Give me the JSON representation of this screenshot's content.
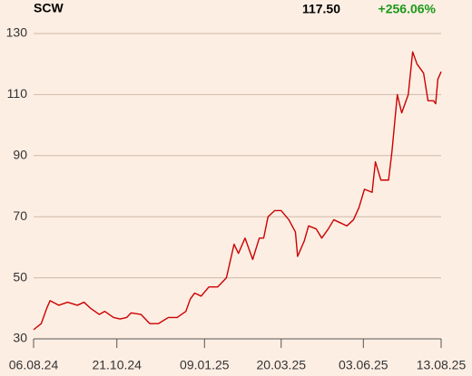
{
  "header": {
    "symbol": "SCW",
    "price": "117.50",
    "change": "+256.06%"
  },
  "chart_data": {
    "type": "line",
    "x": [
      "2024-08-06",
      "2024-08-13",
      "2024-08-18",
      "2024-08-21",
      "2024-08-29",
      "2024-09-06",
      "2024-09-15",
      "2024-09-21",
      "2024-09-27",
      "2024-10-05",
      "2024-10-10",
      "2024-10-18",
      "2024-10-24",
      "2024-10-30",
      "2024-11-03",
      "2024-11-12",
      "2024-11-20",
      "2024-11-28",
      "2024-12-07",
      "2024-12-15",
      "2024-12-23",
      "2024-12-27",
      "2024-12-31",
      "2025-01-06",
      "2025-01-13",
      "2025-01-21",
      "2025-01-29",
      "2025-02-05",
      "2025-02-09",
      "2025-02-15",
      "2025-02-22",
      "2025-02-28",
      "2025-03-04",
      "2025-03-08",
      "2025-03-14",
      "2025-03-20",
      "2025-03-27",
      "2025-04-02",
      "2025-04-04",
      "2025-04-10",
      "2025-04-14",
      "2025-04-21",
      "2025-04-26",
      "2025-05-02",
      "2025-05-07",
      "2025-05-13",
      "2025-05-19",
      "2025-05-25",
      "2025-05-30",
      "2025-06-04",
      "2025-06-11",
      "2025-06-14",
      "2025-06-19",
      "2025-06-26",
      "2025-06-29",
      "2025-07-04",
      "2025-07-08",
      "2025-07-14",
      "2025-07-18",
      "2025-07-22",
      "2025-07-28",
      "2025-08-01",
      "2025-08-06",
      "2025-08-08",
      "2025-08-10",
      "2025-08-13"
    ],
    "series": [
      {
        "name": "SCW",
        "color": "#cc0000",
        "values": [
          33,
          35,
          40,
          42.5,
          41,
          42,
          41,
          42,
          40,
          38,
          39,
          37,
          36.5,
          37,
          38.5,
          38,
          35,
          35,
          37,
          37,
          39,
          43,
          45,
          44,
          47,
          47,
          50,
          61,
          58,
          63,
          56,
          63,
          63,
          70,
          72,
          72,
          69,
          65,
          57,
          62,
          67,
          66,
          63,
          66,
          69,
          68,
          67,
          69,
          73,
          79,
          78,
          88,
          82,
          82,
          91,
          110,
          104,
          110,
          124,
          120,
          117,
          108,
          108,
          107,
          115,
          117.5
        ]
      }
    ],
    "xlim": [
      "2024-08-06",
      "2025-08-13"
    ],
    "xticks": [
      {
        "value": "2024-08-06",
        "label": "06.08.24"
      },
      {
        "value": "2024-10-21",
        "label": "21.10.24"
      },
      {
        "value": "2025-01-09",
        "label": "09.01.25"
      },
      {
        "value": "2025-03-20",
        "label": "20.03.25"
      },
      {
        "value": "2025-06-03",
        "label": "03.06.25"
      },
      {
        "value": "2025-08-13",
        "label": "13.08.25"
      }
    ],
    "ylim": [
      30,
      130
    ],
    "yticks": [
      30,
      50,
      70,
      90,
      110,
      130
    ],
    "grid": true
  }
}
